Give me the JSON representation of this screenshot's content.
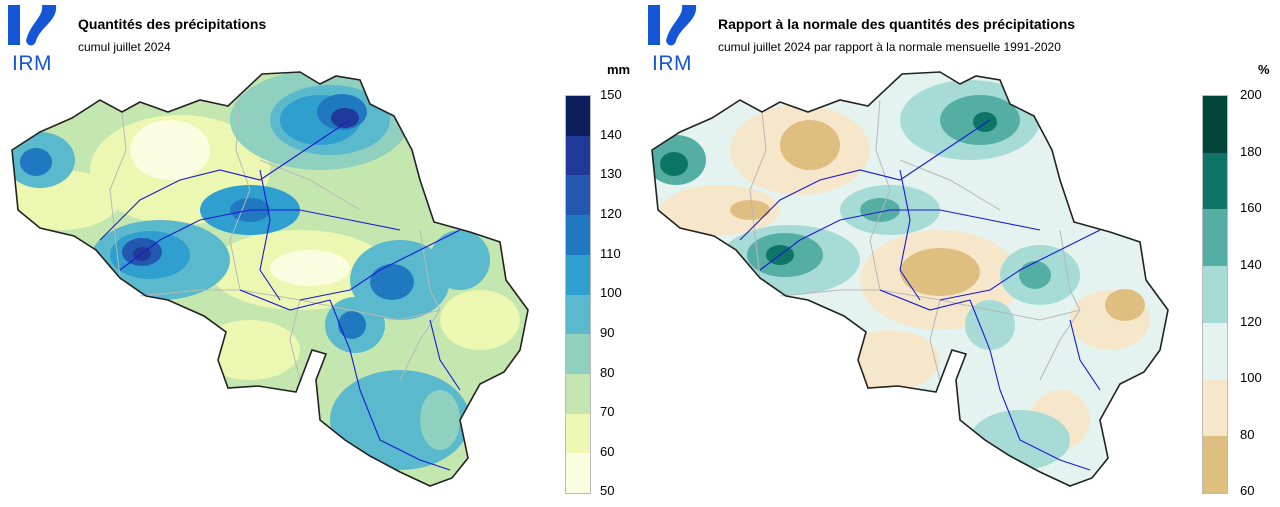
{
  "logo": {
    "text": "IRM",
    "color": "#1556d6"
  },
  "panels": [
    {
      "title": "Quantités des précipitations",
      "subtitle": "cumul juillet 2024",
      "unit": "mm",
      "legend": {
        "labels": [
          "150",
          "140",
          "130",
          "120",
          "110",
          "100",
          "90",
          "80",
          "70",
          "60",
          "50"
        ],
        "colors": [
          "#0c1f5c",
          "#1f3a98",
          "#2458b0",
          "#2079c0",
          "#2e9fcf",
          "#5ab9cc",
          "#8fd0bf",
          "#c4e7b0",
          "#ecf7b2",
          "#fbfde0"
        ]
      }
    },
    {
      "title": "Rapport à la normale des quantités des précipitations",
      "subtitle": "cumul juillet 2024 par rapport à la normale mensuelle 1991-2020",
      "unit": "%",
      "legend": {
        "labels": [
          "200",
          "180",
          "160",
          "140",
          "120",
          "100",
          "80",
          "60"
        ],
        "colors": [
          "#01443a",
          "#0d7566",
          "#55aea3",
          "#a7dbd5",
          "#e4f2f0",
          "#f6e7cb",
          "#dfbf7f"
        ]
      }
    }
  ]
}
